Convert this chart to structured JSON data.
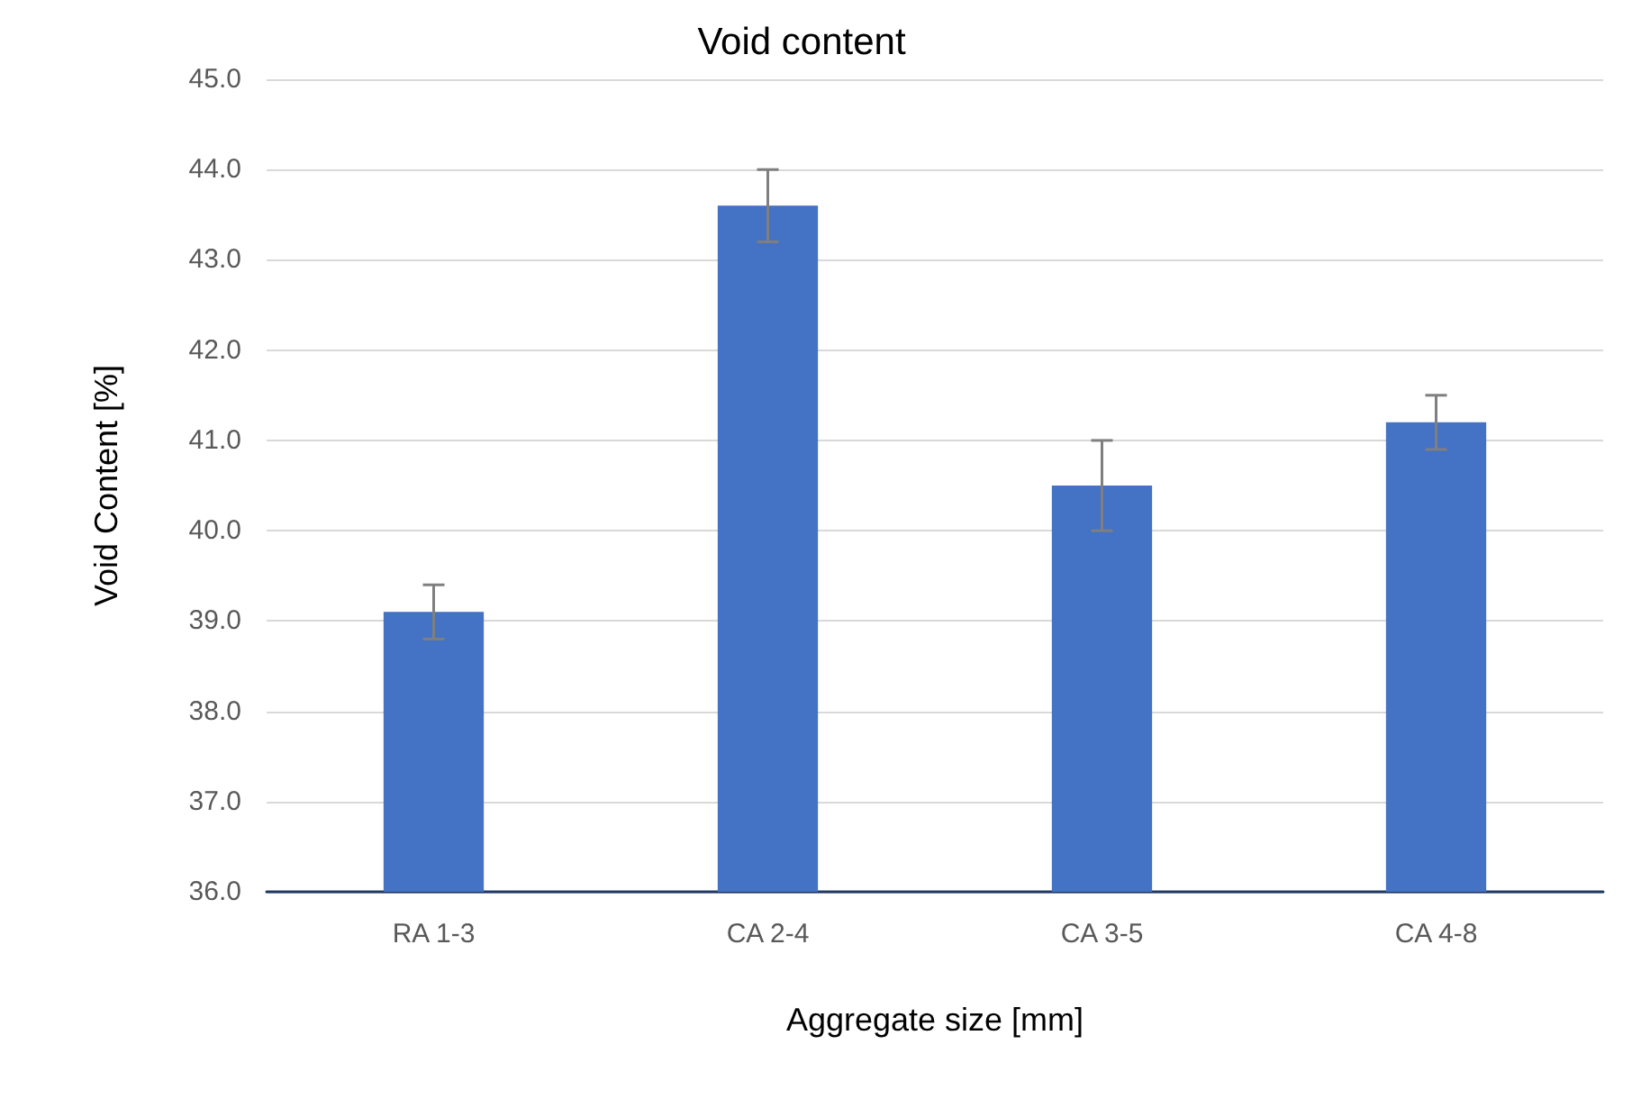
{
  "chart_data": {
    "type": "bar",
    "title": "Void content",
    "xlabel": "Aggregate size [mm]",
    "ylabel": "Void Content [%]",
    "categories": [
      "RA 1-3",
      "CA 2-4",
      "CA 3-5",
      "CA 4-8"
    ],
    "series": [
      {
        "color": "#4472c4",
        "values": [
          39.1,
          43.6,
          40.5,
          41.2
        ],
        "errors": [
          0.3,
          0.4,
          0.5,
          0.3
        ]
      }
    ],
    "ylim": [
      36,
      45
    ],
    "yticks": [
      {
        "value": 36,
        "label": "36.0"
      },
      {
        "value": 37,
        "label": "37.0"
      },
      {
        "value": 38,
        "label": "38.0"
      },
      {
        "value": 39,
        "label": "39.0"
      },
      {
        "value": 40,
        "label": "40.0"
      },
      {
        "value": 41,
        "label": "41.0"
      },
      {
        "value": 42,
        "label": "42.0"
      },
      {
        "value": 43,
        "label": "43.0"
      },
      {
        "value": 44,
        "label": "44.0"
      },
      {
        "value": 45,
        "label": "45.0"
      }
    ],
    "grid": "y"
  }
}
